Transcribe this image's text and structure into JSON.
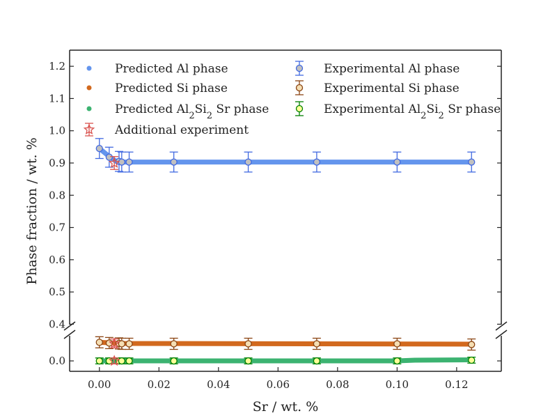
{
  "chart_data": {
    "type": "scatter",
    "title": "",
    "xlabel": "Sr / wt. %",
    "ylabel": "Phase fraction / wt. %",
    "xlim": [
      -0.01,
      0.135
    ],
    "ylim_upper": [
      0.39,
      1.25
    ],
    "ylim_lower": [
      -0.028,
      0.075
    ],
    "broken_y_axis": true,
    "grid": false,
    "legend_position": "top",
    "x_ticks": [
      "0.00",
      "0.02",
      "0.04",
      "0.06",
      "0.08",
      "0.10",
      "0.12"
    ],
    "x_tick_values": [
      0.0,
      0.02,
      0.04,
      0.06,
      0.08,
      0.1,
      0.12
    ],
    "y_ticks_upper": [
      "0.4",
      "0.5",
      "0.6",
      "0.7",
      "0.8",
      "0.9",
      "1.0",
      "1.1",
      "1.2"
    ],
    "y_tick_values_upper": [
      0.4,
      0.5,
      0.6,
      0.7,
      0.8,
      0.9,
      1.0,
      1.1,
      1.2
    ],
    "y_ticks_lower": [
      "0.0"
    ],
    "y_tick_values_lower": [
      0.0
    ],
    "predicted": [
      {
        "name": "Predicted Al phase",
        "color": "#6495ed",
        "x": [
          0.0,
          0.002,
          0.004,
          0.006,
          0.008,
          0.125
        ],
        "y": [
          0.945,
          0.93,
          0.915,
          0.903,
          0.903,
          0.903
        ]
      },
      {
        "name": "Predicted Si phase",
        "color": "#d2691e",
        "x": [
          0.0,
          0.008,
          0.125
        ],
        "y": [
          0.05,
          0.047,
          0.045
        ]
      },
      {
        "name": "Predicted Al2Si2Sr phase",
        "color": "#3cb371",
        "x": [
          0.0,
          0.1,
          0.106,
          0.125
        ],
        "y": [
          0.0,
          0.0,
          0.002,
          0.003
        ]
      }
    ],
    "experimental": [
      {
        "name": "Experimental Al phase",
        "edge": "#4169e1",
        "fill": "#c0c0c0",
        "x": [
          0.0,
          0.0033,
          0.0066,
          0.0075,
          0.01,
          0.025,
          0.05,
          0.073,
          0.1,
          0.125
        ],
        "y": [
          0.945,
          0.918,
          0.905,
          0.903,
          0.903,
          0.903,
          0.903,
          0.903,
          0.903,
          0.903
        ],
        "err": 0.031
      },
      {
        "name": "Experimental Si phase",
        "edge": "#8b4513",
        "fill": "#f5deb3",
        "x": [
          0.0,
          0.0033,
          0.0066,
          0.0075,
          0.01,
          0.025,
          0.05,
          0.073,
          0.1,
          0.125
        ],
        "y": [
          0.05,
          0.048,
          0.047,
          0.046,
          0.046,
          0.046,
          0.046,
          0.046,
          0.046,
          0.044
        ],
        "err": 0.015
      },
      {
        "name": "Experimental Al2Si2Sr phase",
        "edge": "#008000",
        "fill": "#ffff99",
        "x": [
          0.0,
          0.0033,
          0.0066,
          0.0075,
          0.01,
          0.025,
          0.05,
          0.073,
          0.1,
          0.125
        ],
        "y": [
          0.0,
          0.0,
          0.0,
          0.0,
          0.0,
          0.0,
          0.0,
          0.0,
          0.0,
          0.002
        ],
        "err": 0.008
      }
    ],
    "additional_experiment": {
      "name": "Additional experiment",
      "color": "#d9534f",
      "x": [
        0.005,
        0.005,
        0.005
      ],
      "y": [
        0.9,
        0.047,
        0.0
      ],
      "err": [
        0.02,
        0.012,
        0.008
      ]
    },
    "legend": {
      "left": [
        {
          "kind": "dot",
          "series": 0,
          "text": "Predicted Al phase"
        },
        {
          "kind": "dot",
          "series": 1,
          "text": "Predicted Si phase"
        },
        {
          "kind": "dot",
          "series": 2,
          "text_main": "Predicted Al",
          "sub1": "2",
          "mid1": "Si",
          "sub2": "2",
          "tail": "Sr phase"
        },
        {
          "kind": "star",
          "text": "Additional experiment"
        }
      ],
      "right": [
        {
          "kind": "err",
          "series": 0,
          "text": "Experimental Al phase"
        },
        {
          "kind": "err",
          "series": 1,
          "text": "Experimental Si phase"
        },
        {
          "kind": "err",
          "series": 2,
          "text_main": "Experimental Al",
          "sub1": "2",
          "mid1": "Si",
          "sub2": "2",
          "tail": "Sr phase"
        }
      ]
    }
  }
}
